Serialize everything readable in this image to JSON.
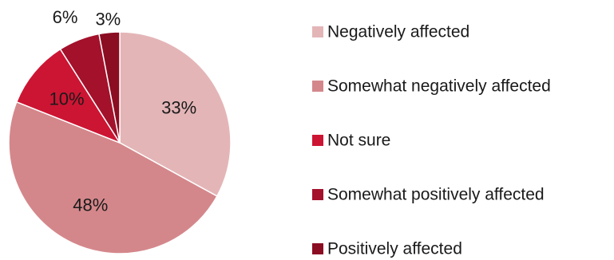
{
  "chart_data": {
    "type": "pie",
    "slices": [
      {
        "label": "Negatively affected",
        "value": 33,
        "value_label": "33%",
        "color": "#e4b5b7"
      },
      {
        "label": "Somewhat negatively affected",
        "value": 48,
        "value_label": "48%",
        "color": "#d4878b"
      },
      {
        "label": "Not sure",
        "value": 10,
        "value_label": "10%",
        "color": "#cc1533"
      },
      {
        "label": "Somewhat positively affected",
        "value": 6,
        "value_label": "6%",
        "color": "#a3112b"
      },
      {
        "label": "Positively affected",
        "value": 3,
        "value_label": "3%",
        "color": "#8b0d22"
      }
    ],
    "start_angle": "12 o'clock",
    "direction": "clockwise",
    "legend_position": "right"
  }
}
